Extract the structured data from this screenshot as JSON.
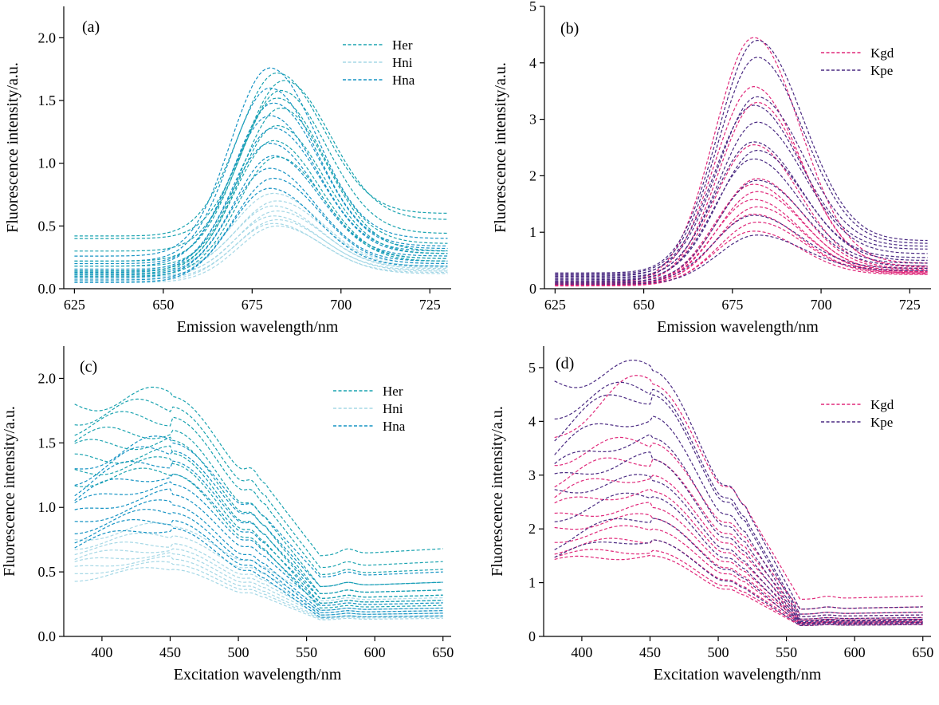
{
  "chart_data": [
    {
      "panel_label": "(a)",
      "type": "line",
      "xlabel": "Emission wavelength/nm",
      "ylabel": "Fluorescence intensity/a.u.",
      "xlim": [
        622,
        731
      ],
      "ylim": [
        0,
        2.25
      ],
      "xticks": [
        625,
        650,
        675,
        700,
        725
      ],
      "yticks": [
        0.0,
        0.5,
        1.0,
        1.5,
        2.0
      ],
      "ytick_labels": [
        "0.0",
        "0.5",
        "1.0",
        "1.5",
        "2.0"
      ],
      "legend_position": "top-right",
      "line_style": "dashed",
      "series": [
        {
          "name": "Her",
          "color": "#1aa3b0",
          "curves": [
            {
              "base_left": 0.42,
              "base_right": 0.6,
              "peak": 1.72,
              "center": 682
            },
            {
              "base_left": 0.4,
              "base_right": 0.55,
              "peak": 1.66,
              "center": 684
            },
            {
              "base_left": 0.3,
              "base_right": 0.44,
              "peak": 1.58,
              "center": 683
            },
            {
              "base_left": 0.22,
              "base_right": 0.36,
              "peak": 1.52,
              "center": 682
            },
            {
              "base_left": 0.18,
              "base_right": 0.3,
              "peak": 1.44,
              "center": 683
            },
            {
              "base_left": 0.14,
              "base_right": 0.28,
              "peak": 1.3,
              "center": 682
            },
            {
              "base_left": 0.12,
              "base_right": 0.24,
              "peak": 1.18,
              "center": 681
            },
            {
              "base_left": 0.1,
              "base_right": 0.22,
              "peak": 1.05,
              "center": 682
            }
          ]
        },
        {
          "name": "Hni",
          "color": "#a6d8e6",
          "curves": [
            {
              "base_left": 0.16,
              "base_right": 0.2,
              "peak": 0.76,
              "center": 681
            },
            {
              "base_left": 0.14,
              "base_right": 0.18,
              "peak": 0.7,
              "center": 682
            },
            {
              "base_left": 0.12,
              "base_right": 0.17,
              "peak": 0.66,
              "center": 681
            },
            {
              "base_left": 0.1,
              "base_right": 0.16,
              "peak": 0.62,
              "center": 682
            },
            {
              "base_left": 0.09,
              "base_right": 0.15,
              "peak": 0.58,
              "center": 681
            },
            {
              "base_left": 0.08,
              "base_right": 0.14,
              "peak": 0.55,
              "center": 682
            },
            {
              "base_left": 0.06,
              "base_right": 0.13,
              "peak": 0.52,
              "center": 681
            },
            {
              "base_left": 0.05,
              "base_right": 0.12,
              "peak": 0.5,
              "center": 682
            }
          ]
        },
        {
          "name": "Hna",
          "color": "#1593c4",
          "curves": [
            {
              "base_left": 0.26,
              "base_right": 0.4,
              "peak": 1.76,
              "center": 680
            },
            {
              "base_left": 0.22,
              "base_right": 0.34,
              "peak": 1.6,
              "center": 680
            },
            {
              "base_left": 0.2,
              "base_right": 0.32,
              "peak": 1.48,
              "center": 681
            },
            {
              "base_left": 0.18,
              "base_right": 0.3,
              "peak": 1.38,
              "center": 680
            },
            {
              "base_left": 0.15,
              "base_right": 0.28,
              "peak": 1.28,
              "center": 681
            },
            {
              "base_left": 0.13,
              "base_right": 0.26,
              "peak": 1.16,
              "center": 680
            },
            {
              "base_left": 0.11,
              "base_right": 0.24,
              "peak": 1.06,
              "center": 681
            },
            {
              "base_left": 0.09,
              "base_right": 0.22,
              "peak": 0.96,
              "center": 680
            },
            {
              "base_left": 0.07,
              "base_right": 0.2,
              "peak": 0.88,
              "center": 681
            },
            {
              "base_left": 0.05,
              "base_right": 0.18,
              "peak": 0.8,
              "center": 680
            }
          ]
        }
      ]
    },
    {
      "panel_label": "(b)",
      "type": "line",
      "xlabel": "Emission wavelength/nm",
      "ylabel": "Fluorescence intensity/a.u.",
      "xlim": [
        622,
        731
      ],
      "ylim": [
        0,
        5
      ],
      "xticks": [
        625,
        650,
        675,
        700,
        725
      ],
      "yticks": [
        0,
        1,
        2,
        3,
        4,
        5
      ],
      "ytick_labels": [
        "0",
        "1",
        "2",
        "3",
        "4",
        "5"
      ],
      "legend_position": "top-right",
      "line_style": "dashed",
      "series": [
        {
          "name": "Kgd",
          "color": "#e0287a",
          "curves": [
            {
              "base_left": 0.12,
              "base_right": 0.45,
              "peak": 4.45,
              "center": 681
            },
            {
              "base_left": 0.12,
              "base_right": 0.4,
              "peak": 3.58,
              "center": 681
            },
            {
              "base_left": 0.1,
              "base_right": 0.38,
              "peak": 3.3,
              "center": 682
            },
            {
              "base_left": 0.1,
              "base_right": 0.36,
              "peak": 2.55,
              "center": 681
            },
            {
              "base_left": 0.09,
              "base_right": 0.34,
              "peak": 1.95,
              "center": 682
            },
            {
              "base_left": 0.08,
              "base_right": 0.32,
              "peak": 1.85,
              "center": 681
            },
            {
              "base_left": 0.08,
              "base_right": 0.3,
              "peak": 1.72,
              "center": 682
            },
            {
              "base_left": 0.07,
              "base_right": 0.3,
              "peak": 1.58,
              "center": 681
            },
            {
              "base_left": 0.07,
              "base_right": 0.28,
              "peak": 1.45,
              "center": 682
            },
            {
              "base_left": 0.06,
              "base_right": 0.28,
              "peak": 1.32,
              "center": 681
            },
            {
              "base_left": 0.06,
              "base_right": 0.26,
              "peak": 1.18,
              "center": 682
            },
            {
              "base_left": 0.05,
              "base_right": 0.25,
              "peak": 1.02,
              "center": 681
            }
          ]
        },
        {
          "name": "Kpe",
          "color": "#4a2a82",
          "curves": [
            {
              "base_left": 0.28,
              "base_right": 0.85,
              "peak": 4.4,
              "center": 682
            },
            {
              "base_left": 0.26,
              "base_right": 0.8,
              "peak": 4.1,
              "center": 682
            },
            {
              "base_left": 0.24,
              "base_right": 0.75,
              "peak": 3.4,
              "center": 682
            },
            {
              "base_left": 0.22,
              "base_right": 0.7,
              "peak": 3.25,
              "center": 681
            },
            {
              "base_left": 0.2,
              "base_right": 0.62,
              "peak": 2.95,
              "center": 682
            },
            {
              "base_left": 0.18,
              "base_right": 0.55,
              "peak": 2.6,
              "center": 681
            },
            {
              "base_left": 0.16,
              "base_right": 0.5,
              "peak": 2.45,
              "center": 682
            },
            {
              "base_left": 0.14,
              "base_right": 0.45,
              "peak": 2.3,
              "center": 681
            },
            {
              "base_left": 0.12,
              "base_right": 0.4,
              "peak": 1.92,
              "center": 682
            },
            {
              "base_left": 0.1,
              "base_right": 0.36,
              "peak": 1.3,
              "center": 681
            },
            {
              "base_left": 0.08,
              "base_right": 0.32,
              "peak": 0.95,
              "center": 682
            }
          ]
        }
      ]
    },
    {
      "panel_label": "(c)",
      "type": "line",
      "xlabel": "Excitation wavelength/nm",
      "ylabel": "Fluorescence intensity/a.u.",
      "xlim": [
        372,
        656
      ],
      "ylim": [
        0,
        2.25
      ],
      "xticks": [
        400,
        450,
        500,
        550,
        600,
        650
      ],
      "yticks": [
        0.0,
        0.5,
        1.0,
        1.5,
        2.0
      ],
      "ytick_labels": [
        "0.0",
        "0.5",
        "1.0",
        "1.5",
        "2.0"
      ],
      "legend_position": "top-right",
      "line_style": "dashed",
      "series": [
        {
          "name": "Her",
          "color": "#1aa3b0",
          "curves": [
            {
              "start": 1.8,
              "peak": 1.86,
              "end": 0.68
            },
            {
              "start": 1.7,
              "peak": 1.78,
              "end": 0.58
            },
            {
              "start": 1.62,
              "peak": 1.7,
              "end": 0.52
            },
            {
              "start": 1.52,
              "peak": 1.6,
              "end": 0.42
            },
            {
              "start": 1.45,
              "peak": 1.52,
              "end": 0.36
            },
            {
              "start": 1.36,
              "peak": 1.42,
              "end": 0.32
            },
            {
              "start": 1.28,
              "peak": 1.34,
              "end": 0.28
            },
            {
              "start": 1.2,
              "peak": 1.26,
              "end": 0.24
            }
          ]
        },
        {
          "name": "Hni",
          "color": "#a6d8e6",
          "curves": [
            {
              "start": 0.75,
              "peak": 0.85,
              "end": 0.3
            },
            {
              "start": 0.7,
              "peak": 0.78,
              "end": 0.26
            },
            {
              "start": 0.66,
              "peak": 0.72,
              "end": 0.22
            },
            {
              "start": 0.6,
              "peak": 0.68,
              "end": 0.2
            },
            {
              "start": 0.56,
              "peak": 0.64,
              "end": 0.18
            },
            {
              "start": 0.52,
              "peak": 0.6,
              "end": 0.16
            },
            {
              "start": 0.48,
              "peak": 0.56,
              "end": 0.15
            },
            {
              "start": 0.44,
              "peak": 0.52,
              "end": 0.14
            }
          ]
        },
        {
          "name": "Hna",
          "color": "#1593c4",
          "curves": [
            {
              "start": 1.3,
              "peak": 1.5,
              "end": 0.5
            },
            {
              "start": 1.22,
              "peak": 1.44,
              "end": 0.42
            },
            {
              "start": 1.14,
              "peak": 1.36,
              "end": 0.36
            },
            {
              "start": 1.06,
              "peak": 1.26,
              "end": 0.32
            },
            {
              "start": 1.0,
              "peak": 1.18,
              "end": 0.28
            },
            {
              "start": 0.94,
              "peak": 1.1,
              "end": 0.26
            },
            {
              "start": 0.88,
              "peak": 1.02,
              "end": 0.22
            },
            {
              "start": 0.82,
              "peak": 0.96,
              "end": 0.2
            },
            {
              "start": 0.76,
              "peak": 0.9,
              "end": 0.18
            },
            {
              "start": 0.7,
              "peak": 0.84,
              "end": 0.16
            }
          ]
        }
      ]
    },
    {
      "panel_label": "(d)",
      "type": "line",
      "xlabel": "Excitation wavelength/nm",
      "ylabel": "Fluorescence intensity/a.u.",
      "xlim": [
        372,
        656
      ],
      "ylim": [
        0,
        5.4
      ],
      "xticks": [
        400,
        450,
        500,
        550,
        600,
        650
      ],
      "yticks": [
        0,
        1,
        2,
        3,
        4,
        5
      ],
      "ytick_labels": [
        "0",
        "1",
        "2",
        "3",
        "4",
        "5"
      ],
      "legend_position": "top-right",
      "line_style": "dashed",
      "series": [
        {
          "name": "Kgd",
          "color": "#e0287a",
          "curves": [
            {
              "start": 3.7,
              "peak": 4.7,
              "end": 0.75
            },
            {
              "start": 3.3,
              "peak": 3.6,
              "end": 0.55
            },
            {
              "start": 2.9,
              "peak": 3.3,
              "end": 0.45
            },
            {
              "start": 2.6,
              "peak": 3.0,
              "end": 0.4
            },
            {
              "start": 2.4,
              "peak": 2.7,
              "end": 0.35
            },
            {
              "start": 2.2,
              "peak": 2.4,
              "end": 0.32
            },
            {
              "start": 2.0,
              "peak": 2.2,
              "end": 0.3
            },
            {
              "start": 1.8,
              "peak": 2.0,
              "end": 0.28
            },
            {
              "start": 1.6,
              "peak": 1.8,
              "end": 0.26
            },
            {
              "start": 1.5,
              "peak": 1.6,
              "end": 0.24
            },
            {
              "start": 1.4,
              "peak": 1.5,
              "end": 0.22
            }
          ]
        },
        {
          "name": "Kpe",
          "color": "#4a2a82",
          "curves": [
            {
              "start": 4.75,
              "peak": 4.95,
              "end": 0.55
            },
            {
              "start": 4.2,
              "peak": 4.6,
              "end": 0.45
            },
            {
              "start": 3.8,
              "peak": 4.5,
              "end": 0.4
            },
            {
              "start": 3.4,
              "peak": 4.1,
              "end": 0.35
            },
            {
              "start": 3.1,
              "peak": 3.7,
              "end": 0.32
            },
            {
              "start": 2.9,
              "peak": 3.3,
              "end": 0.3
            },
            {
              "start": 2.7,
              "peak": 2.9,
              "end": 0.28
            },
            {
              "start": 2.2,
              "peak": 2.6,
              "end": 0.26
            },
            {
              "start": 1.7,
              "peak": 2.2,
              "end": 0.24
            },
            {
              "start": 1.5,
              "peak": 1.8,
              "end": 0.22
            }
          ]
        }
      ]
    }
  ]
}
